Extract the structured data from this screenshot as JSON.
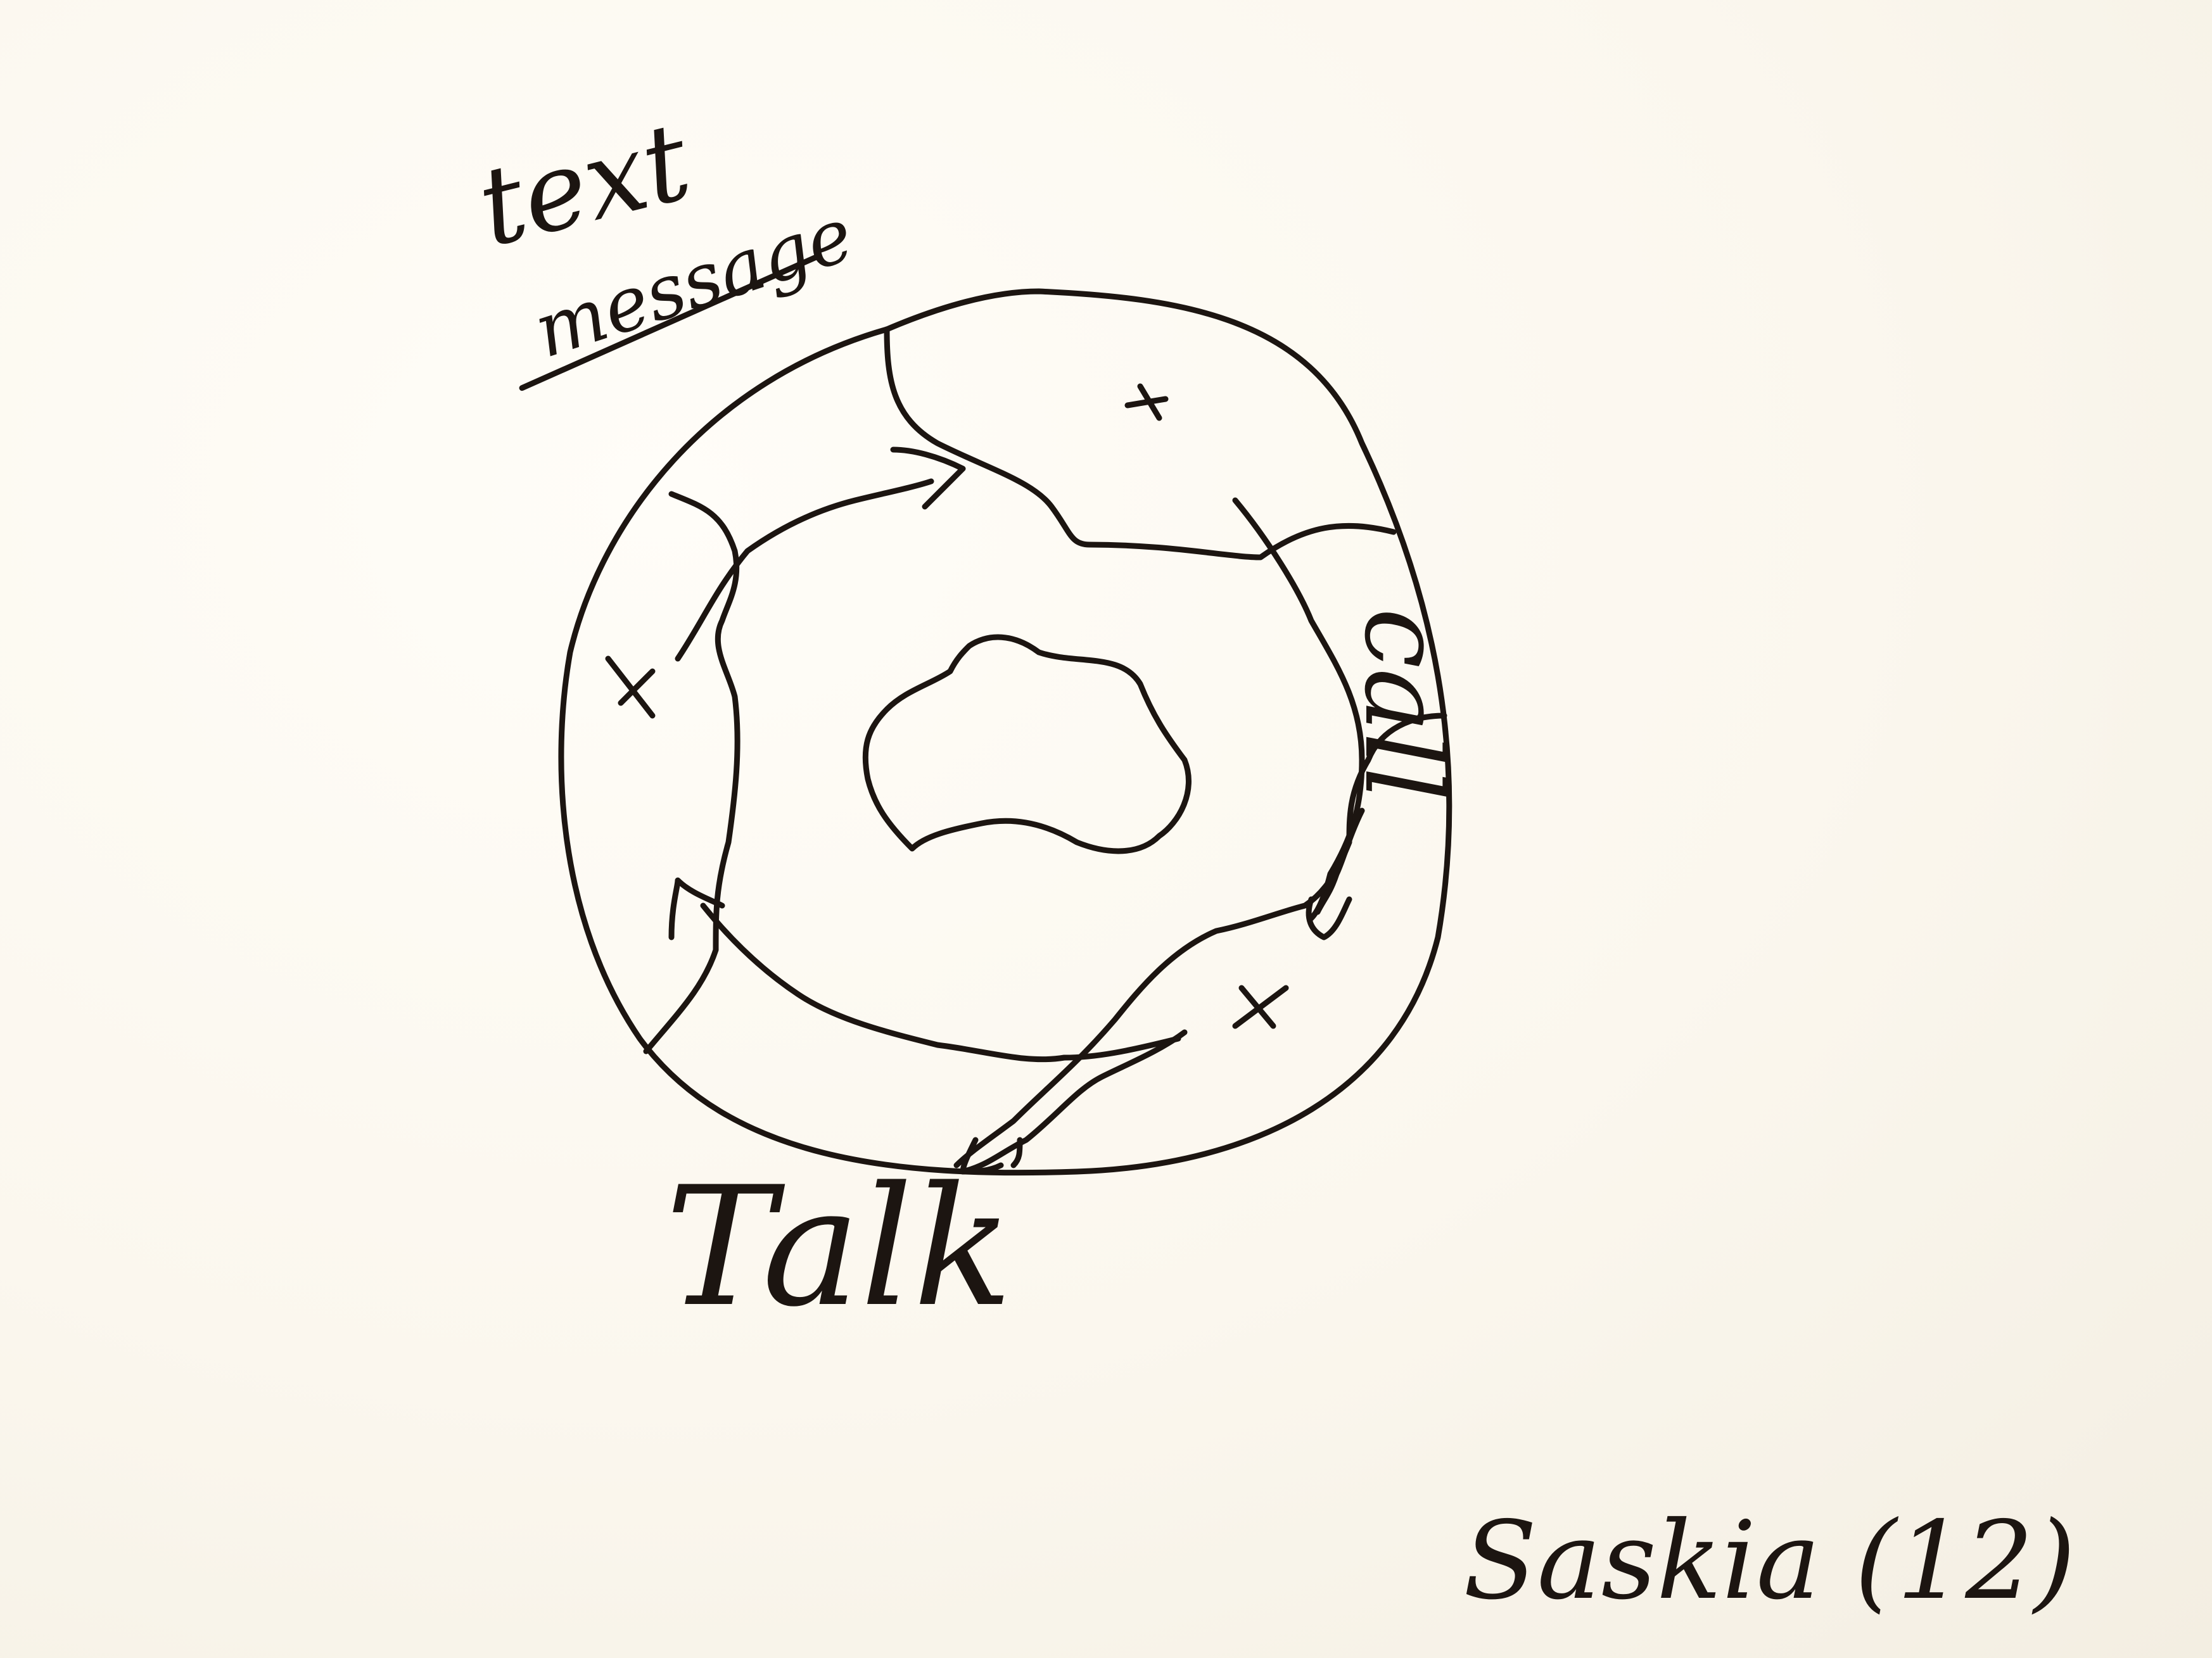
{
  "labels": {
    "text": "text",
    "message_struck": "message",
    "call": "call",
    "talk": "Talk",
    "author": "Saskia (12)"
  },
  "marks": {
    "cross_symbol": "x"
  }
}
